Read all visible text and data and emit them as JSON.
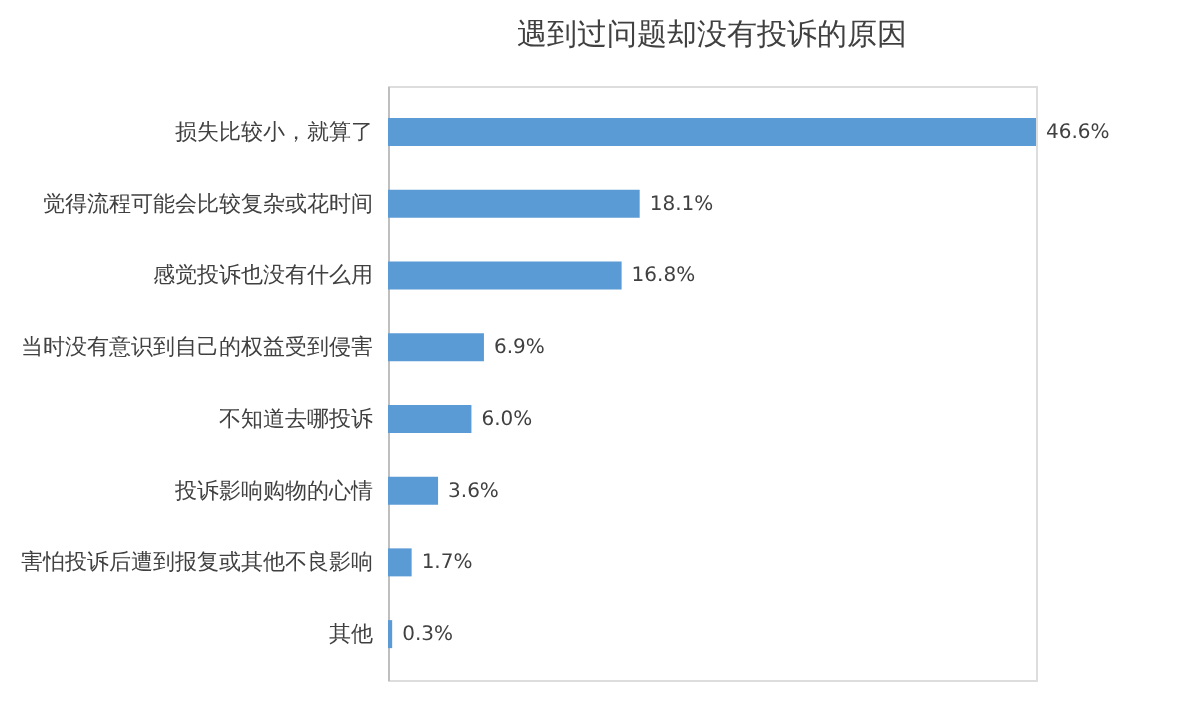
{
  "chart_data": {
    "type": "bar",
    "orientation": "horizontal",
    "title": "遇到过问题却没有投诉的原因",
    "categories": [
      "损失比较小，就算了",
      "觉得流程可能会比较复杂或花时间",
      "感觉投诉也没有什么用",
      "当时没有意识到自己的权益受到侵害",
      "不知道去哪投诉",
      "投诉影响购物的心情",
      "害怕投诉后遭到报复或其他不良影响",
      "其他"
    ],
    "values": [
      46.6,
      18.1,
      16.8,
      6.9,
      6.0,
      3.6,
      1.7,
      0.3
    ],
    "value_labels": [
      "46.6%",
      "18.1%",
      "16.8%",
      "6.9%",
      "6.0%",
      "3.6%",
      "1.7%",
      "0.3%"
    ],
    "color": "#5b9bd5"
  }
}
